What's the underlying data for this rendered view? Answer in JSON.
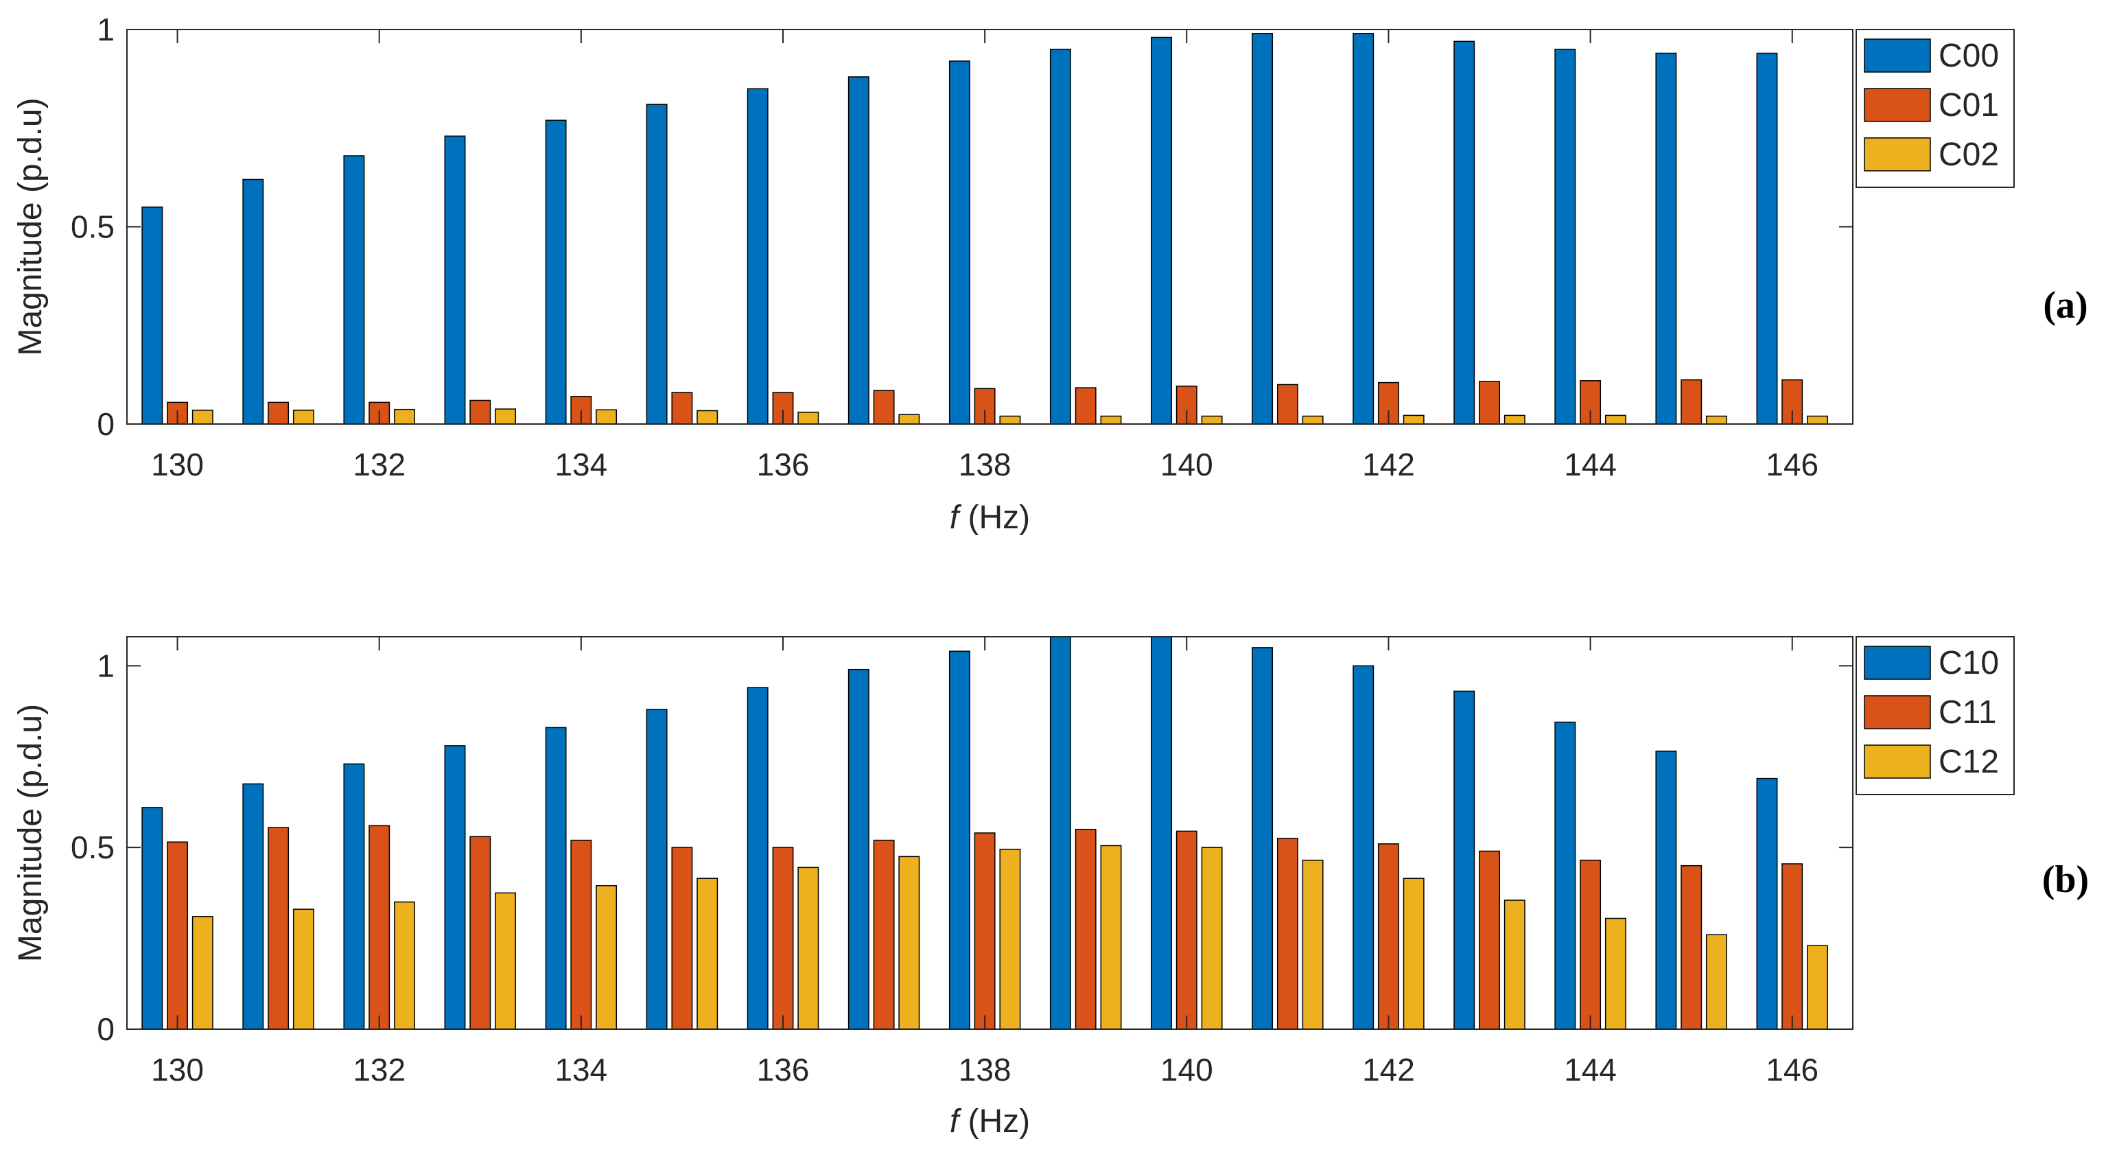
{
  "colors": {
    "series0": "#0072BD",
    "series1": "#D95319",
    "series2": "#EDB120",
    "axis": "#262626",
    "grid": "#262626"
  },
  "chart_data": [
    {
      "type": "bar",
      "panel_label": "(a)",
      "categories": [
        130,
        131,
        132,
        133,
        134,
        135,
        136,
        137,
        138,
        139,
        140,
        141,
        142,
        143,
        144,
        145,
        146
      ],
      "tick_values": [
        130,
        132,
        134,
        136,
        138,
        140,
        142,
        144,
        146
      ],
      "tick_labels": [
        "130",
        "132",
        "134",
        "136",
        "138",
        "140",
        "142",
        "144",
        "146"
      ],
      "ytick_values": [
        0,
        0.5,
        1
      ],
      "ytick_labels": [
        "0",
        "0.5",
        "1"
      ],
      "xlim": [
        129.5,
        146.6
      ],
      "ylim": [
        0,
        1
      ],
      "xlabel_italic": "f",
      "xlabel_rest": " (Hz)",
      "ylabel": "Magnitude (p.d.u)",
      "legend_position": "outside-top-right",
      "series": [
        {
          "name": "C00",
          "values": [
            0.55,
            0.62,
            0.68,
            0.73,
            0.77,
            0.81,
            0.85,
            0.88,
            0.92,
            0.95,
            0.98,
            0.99,
            0.99,
            0.97,
            0.95,
            0.94,
            0.94
          ]
        },
        {
          "name": "C01",
          "values": [
            0.055,
            0.055,
            0.055,
            0.06,
            0.07,
            0.08,
            0.08,
            0.085,
            0.09,
            0.092,
            0.096,
            0.1,
            0.105,
            0.108,
            0.11,
            0.112,
            0.112
          ]
        },
        {
          "name": "C02",
          "values": [
            0.035,
            0.035,
            0.037,
            0.038,
            0.036,
            0.034,
            0.03,
            0.024,
            0.02,
            0.02,
            0.02,
            0.02,
            0.022,
            0.022,
            0.022,
            0.02,
            0.02
          ]
        }
      ]
    },
    {
      "type": "bar",
      "panel_label": "(b)",
      "categories": [
        130,
        131,
        132,
        133,
        134,
        135,
        136,
        137,
        138,
        139,
        140,
        141,
        142,
        143,
        144,
        145,
        146
      ],
      "tick_values": [
        130,
        132,
        134,
        136,
        138,
        140,
        142,
        144,
        146
      ],
      "tick_labels": [
        "130",
        "132",
        "134",
        "136",
        "138",
        "140",
        "142",
        "144",
        "146"
      ],
      "ytick_values": [
        0,
        0.5,
        1
      ],
      "ytick_labels": [
        "0",
        "0.5",
        "1"
      ],
      "xlim": [
        129.5,
        146.6
      ],
      "ylim": [
        0,
        1.08
      ],
      "xlabel_italic": "f",
      "xlabel_rest": " (Hz)",
      "ylabel": "Magnitude (p.d.u)",
      "legend_position": "outside-top-right",
      "series": [
        {
          "name": "C10",
          "values": [
            0.61,
            0.675,
            0.73,
            0.78,
            0.83,
            0.88,
            0.94,
            0.99,
            1.04,
            1.08,
            1.08,
            1.05,
            1.0,
            0.93,
            0.845,
            0.765,
            0.69
          ]
        },
        {
          "name": "C11",
          "values": [
            0.515,
            0.555,
            0.56,
            0.53,
            0.52,
            0.5,
            0.5,
            0.52,
            0.54,
            0.55,
            0.545,
            0.525,
            0.51,
            0.49,
            0.465,
            0.45,
            0.455
          ]
        },
        {
          "name": "C12",
          "values": [
            0.31,
            0.33,
            0.35,
            0.375,
            0.395,
            0.415,
            0.445,
            0.475,
            0.495,
            0.505,
            0.5,
            0.465,
            0.415,
            0.355,
            0.305,
            0.26,
            0.23
          ]
        }
      ]
    }
  ]
}
